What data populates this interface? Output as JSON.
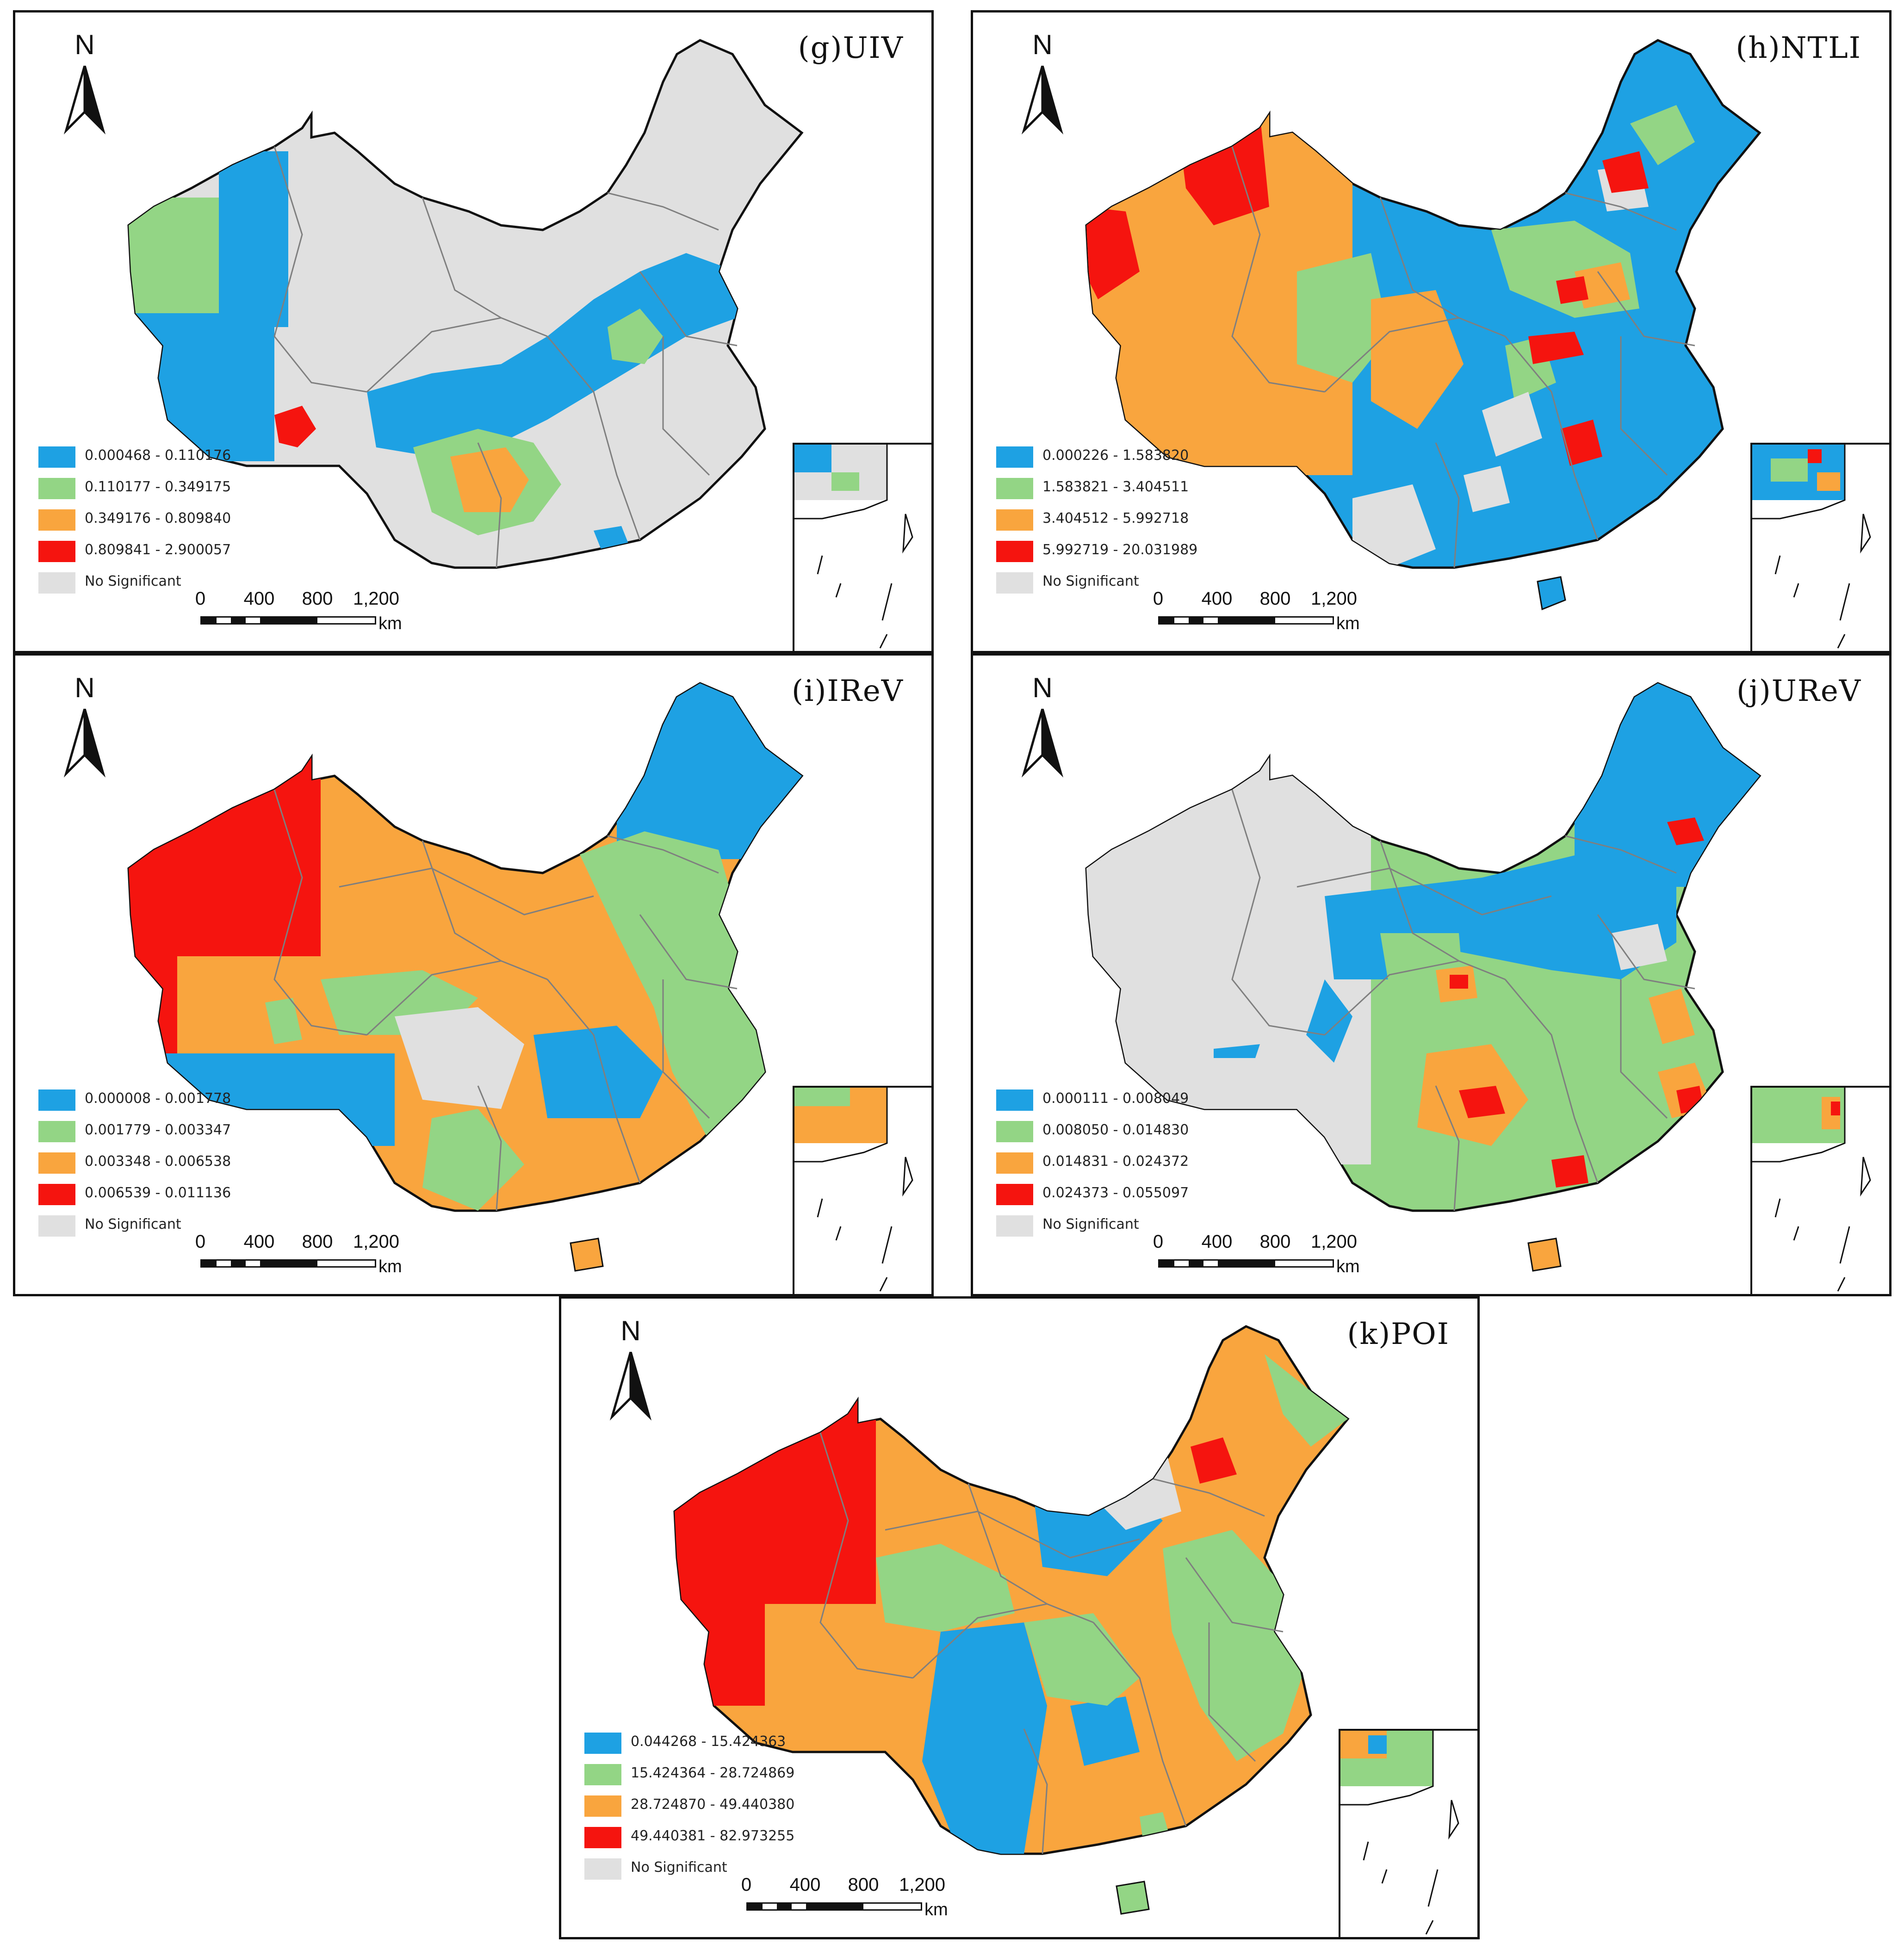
{
  "colors": {
    "blue": "#1ea1e3",
    "green": "#93d585",
    "orange": "#f9a53e",
    "red": "#f5140f",
    "grey": "#e0e0e0",
    "border": "#7f7f7f"
  },
  "north_label": "N",
  "scale": {
    "ticks": [
      "0",
      "400",
      "800",
      "1,200"
    ],
    "unit": "km"
  },
  "no_significant_label": "No Significant",
  "panels": [
    {
      "id": "g",
      "title": "(g)UIV",
      "legend": [
        "0.000468 - 0.110176",
        "0.110177 - 0.349175",
        "0.349176 - 0.809840",
        "0.809841 - 2.900057"
      ]
    },
    {
      "id": "h",
      "title": "(h)NTLI",
      "legend": [
        "0.000226 - 1.583820",
        "1.583821 - 3.404511",
        "3.404512 - 5.992718",
        "5.992719 - 20.031989"
      ]
    },
    {
      "id": "i",
      "title": "(i)IReV",
      "legend": [
        "0.000008 - 0.001778",
        "0.001779 - 0.003347",
        "0.003348 - 0.006538",
        "0.006539 - 0.011136"
      ]
    },
    {
      "id": "j",
      "title": "(j)UReV",
      "legend": [
        "0.000111 - 0.008049",
        "0.008050 - 0.014830",
        "0.014831 - 0.024372",
        "0.024373 - 0.055097"
      ]
    },
    {
      "id": "k",
      "title": "(k)POI",
      "legend": [
        "0.044268 - 15.424363",
        "15.424364 - 28.724869",
        "28.724870 - 49.440380",
        "49.440381 - 82.973255"
      ]
    }
  ]
}
